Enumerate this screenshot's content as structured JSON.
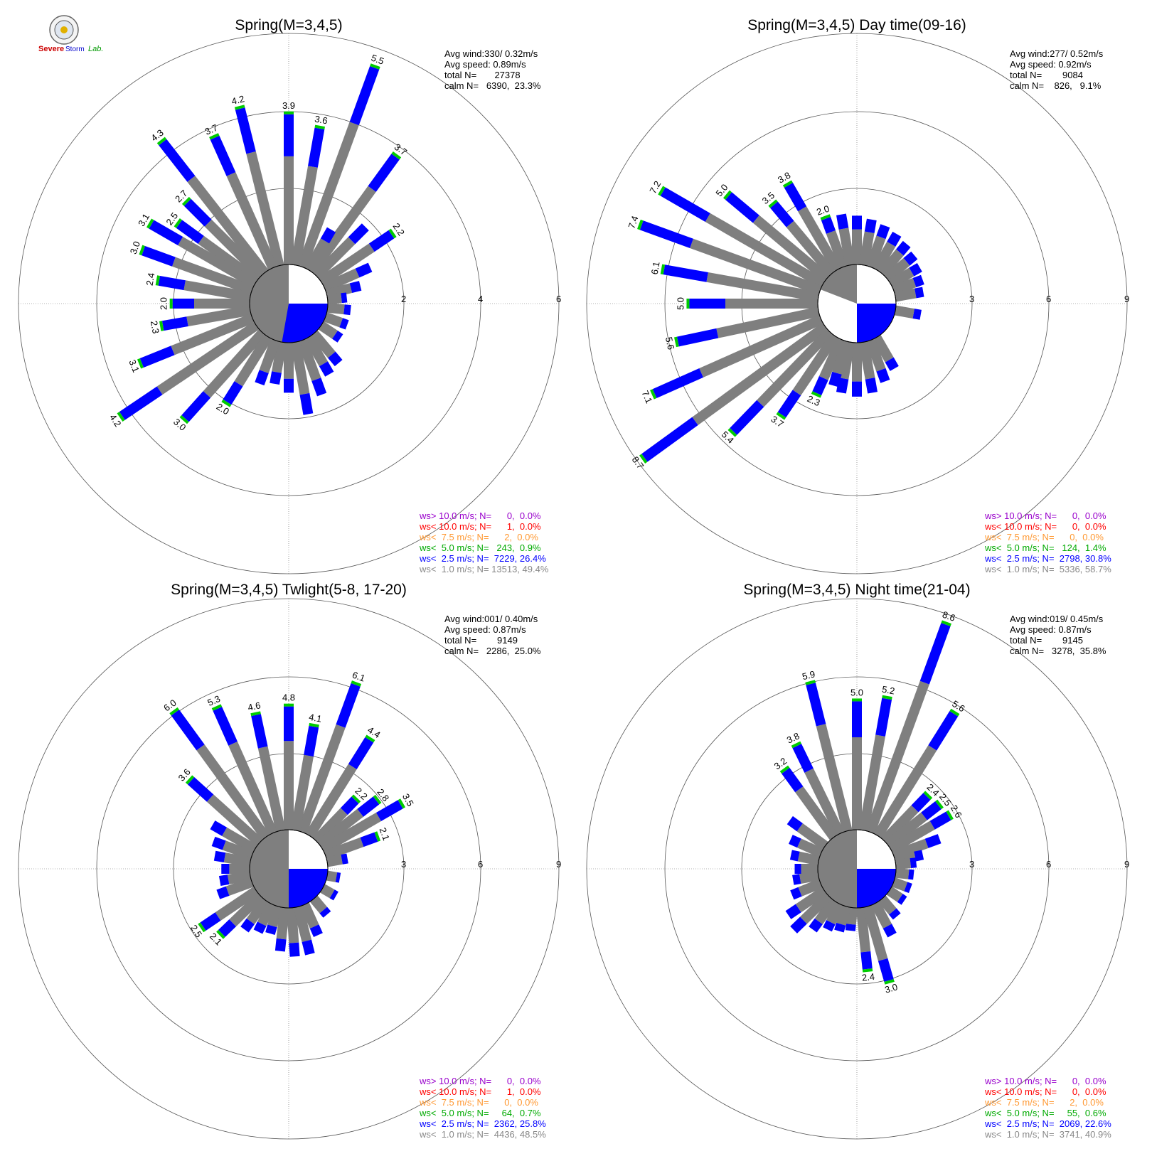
{
  "logo": {
    "lab_text_1": "Severe",
    "lab_text_2": "Storm",
    "lab_text_3": "Lab."
  },
  "colors": {
    "gray": "#7f7f7f",
    "blue": "#0000ff",
    "green": "#00cc00",
    "orange": "#ff9933",
    "red": "#ff0000",
    "purple": "#9900cc",
    "grid": "#888888"
  },
  "chart_data": [
    {
      "type": "polar-bar",
      "title": "Spring(M=3,4,5)",
      "stats": [
        "Avg wind:330/ 0.32m/s",
        "Avg speed: 0.89m/s",
        "total N=       27378",
        "calm N=   6390,  23.3%"
      ],
      "rings": [
        "2",
        "4",
        "6"
      ],
      "ring_values": [
        2,
        4,
        6
      ],
      "calm_fraction": 0.233,
      "blue_sector": [
        90,
        190
      ],
      "labeled_bars": [
        {
          "angle": 20,
          "value": 5.5,
          "label": "5.5"
        },
        {
          "angle": 36,
          "value": 3.7,
          "label": "3.7"
        },
        {
          "angle": 56,
          "value": 2.2,
          "label": "2.2"
        },
        {
          "angle": 10,
          "value": 3.6,
          "label": "3.6"
        },
        {
          "angle": 0,
          "value": 3.9,
          "label": "3.9"
        },
        {
          "angle": 346,
          "value": 4.2,
          "label": "4.2"
        },
        {
          "angle": 336,
          "value": 3.7,
          "label": "3.7"
        },
        {
          "angle": 322,
          "value": 4.3,
          "label": "4.3"
        },
        {
          "angle": 315,
          "value": 2.7,
          "label": "2.7"
        },
        {
          "angle": 306,
          "value": 2.5,
          "label": "2.5"
        },
        {
          "angle": 300,
          "value": 3.1,
          "label": "3.1"
        },
        {
          "angle": 290,
          "value": 3.0,
          "label": "3.0"
        },
        {
          "angle": 280,
          "value": 2.4,
          "label": "2.4"
        },
        {
          "angle": 270,
          "value": 2.0,
          "label": "2.0"
        },
        {
          "angle": 260,
          "value": 2.3,
          "label": "2.3"
        },
        {
          "angle": 248,
          "value": 3.1,
          "label": "3.1"
        },
        {
          "angle": 236,
          "value": 4.2,
          "label": "4.2"
        },
        {
          "angle": 222,
          "value": 3.0,
          "label": "3.0"
        },
        {
          "angle": 212,
          "value": 2.0,
          "label": "2.0"
        }
      ],
      "small_bars": [
        {
          "angle": 30,
          "value": 1.2
        },
        {
          "angle": 45,
          "value": 1.8
        },
        {
          "angle": 66,
          "value": 1.3
        },
        {
          "angle": 76,
          "value": 0.9
        },
        {
          "angle": 84,
          "value": 0.5
        },
        {
          "angle": 96,
          "value": 0.6
        },
        {
          "angle": 110,
          "value": 0.6
        },
        {
          "angle": 124,
          "value": 0.6
        },
        {
          "angle": 140,
          "value": 1.0
        },
        {
          "angle": 150,
          "value": 1.1
        },
        {
          "angle": 160,
          "value": 1.5
        },
        {
          "angle": 170,
          "value": 1.9
        },
        {
          "angle": 180,
          "value": 1.3
        },
        {
          "angle": 190,
          "value": 1.1
        },
        {
          "angle": 200,
          "value": 1.2
        }
      ],
      "legend": [
        {
          "text": "ws> 10.0 m/s; N=      0,  0.0%",
          "color": "#9900cc"
        },
        {
          "text": "ws< 10.0 m/s; N=      1,  0.0%",
          "color": "#ff0000"
        },
        {
          "text": "ws<  7.5 m/s; N=      2,  0.0%",
          "color": "#ff9933"
        },
        {
          "text": "ws<  5.0 m/s; N=   243,  0.9%",
          "color": "#00aa00"
        },
        {
          "text": "ws<  2.5 m/s; N=  7229, 26.4%",
          "color": "#0000ff"
        },
        {
          "text": "ws<  1.0 m/s; N= 13513, 49.4%",
          "color": "#888888"
        }
      ]
    },
    {
      "type": "polar-bar",
      "title": "Spring(M=3,4,5) Day time(09-16)",
      "stats": [
        "Avg wind:277/ 0.52m/s",
        "Avg speed: 0.92m/s",
        "total N=        9084",
        "calm N=    826,   9.1%"
      ],
      "rings": [
        "3",
        "6",
        "9"
      ],
      "ring_values": [
        3,
        6,
        9
      ],
      "calm_fraction": 0.091,
      "blue_sector": [
        90,
        180
      ],
      "labeled_bars": [
        {
          "angle": 330,
          "value": 3.8,
          "label": "3.8"
        },
        {
          "angle": 320,
          "value": 3.5,
          "label": "3.5"
        },
        {
          "angle": 310,
          "value": 5.0,
          "label": "5.0"
        },
        {
          "angle": 300,
          "value": 7.2,
          "label": "7.2"
        },
        {
          "angle": 290,
          "value": 7.4,
          "label": "7.4"
        },
        {
          "angle": 280,
          "value": 6.1,
          "label": "6.1"
        },
        {
          "angle": 270,
          "value": 5.0,
          "label": "5.0"
        },
        {
          "angle": 258,
          "value": 5.6,
          "label": "5.6"
        },
        {
          "angle": 246,
          "value": 7.1,
          "label": "7.1"
        },
        {
          "angle": 234,
          "value": 8.7,
          "label": "8.7"
        },
        {
          "angle": 224,
          "value": 5.4,
          "label": "5.4"
        },
        {
          "angle": 214,
          "value": 3.7,
          "label": "3.7"
        },
        {
          "angle": 204,
          "value": 2.3,
          "label": "2.3"
        },
        {
          "angle": 340,
          "value": 2.0,
          "label": "2.0"
        }
      ],
      "small_bars": [
        {
          "angle": 350,
          "value": 2.0
        },
        {
          "angle": 0,
          "value": 1.9
        },
        {
          "angle": 10,
          "value": 1.8
        },
        {
          "angle": 20,
          "value": 1.7
        },
        {
          "angle": 30,
          "value": 1.6
        },
        {
          "angle": 40,
          "value": 1.5
        },
        {
          "angle": 50,
          "value": 1.4
        },
        {
          "angle": 60,
          "value": 1.3
        },
        {
          "angle": 70,
          "value": 1.2
        },
        {
          "angle": 80,
          "value": 1.1
        },
        {
          "angle": 100,
          "value": 1.0
        },
        {
          "angle": 150,
          "value": 1.4
        },
        {
          "angle": 160,
          "value": 1.7
        },
        {
          "angle": 170,
          "value": 2.0
        },
        {
          "angle": 180,
          "value": 2.1
        },
        {
          "angle": 190,
          "value": 2.0
        },
        {
          "angle": 196,
          "value": 1.8
        }
      ],
      "legend": [
        {
          "text": "ws> 10.0 m/s; N=      0,  0.0%",
          "color": "#9900cc"
        },
        {
          "text": "ws< 10.0 m/s; N=      0,  0.0%",
          "color": "#ff0000"
        },
        {
          "text": "ws<  7.5 m/s; N=      0,  0.0%",
          "color": "#ff9933"
        },
        {
          "text": "ws<  5.0 m/s; N=   124,  1.4%",
          "color": "#00aa00"
        },
        {
          "text": "ws<  2.5 m/s; N=  2798, 30.8%",
          "color": "#0000ff"
        },
        {
          "text": "ws<  1.0 m/s; N=  5336, 58.7%",
          "color": "#888888"
        }
      ]
    },
    {
      "type": "polar-bar",
      "title": "Spring(M=3,4,5) Twlight(5-8, 17-20)",
      "stats": [
        "Avg wind:001/ 0.40m/s",
        "Avg speed: 0.87m/s",
        "total N=        9149",
        "calm N=   2286,  25.0%"
      ],
      "rings": [
        "3",
        "6",
        "9"
      ],
      "ring_values": [
        3,
        6,
        9
      ],
      "calm_fraction": 0.25,
      "blue_sector": [
        90,
        180
      ],
      "labeled_bars": [
        {
          "angle": 20,
          "value": 6.1,
          "label": "6.1"
        },
        {
          "angle": 32,
          "value": 4.4,
          "label": "4.4"
        },
        {
          "angle": 44,
          "value": 2.2,
          "label": "2.2"
        },
        {
          "angle": 52,
          "value": 2.8,
          "label": "2.8"
        },
        {
          "angle": 60,
          "value": 3.5,
          "label": "3.5"
        },
        {
          "angle": 70,
          "value": 2.1,
          "label": "2.1"
        },
        {
          "angle": 10,
          "value": 4.1,
          "label": "4.1"
        },
        {
          "angle": 0,
          "value": 4.8,
          "label": "4.8"
        },
        {
          "angle": 348,
          "value": 4.6,
          "label": "4.6"
        },
        {
          "angle": 336,
          "value": 5.3,
          "label": "5.3"
        },
        {
          "angle": 324,
          "value": 6.0,
          "label": "6.0"
        },
        {
          "angle": 312,
          "value": 3.6,
          "label": "3.6"
        },
        {
          "angle": 236,
          "value": 2.5,
          "label": "2.5"
        },
        {
          "angle": 226,
          "value": 2.1,
          "label": "2.1"
        }
      ],
      "small_bars": [
        {
          "angle": 300,
          "value": 1.9
        },
        {
          "angle": 290,
          "value": 1.6
        },
        {
          "angle": 280,
          "value": 1.4
        },
        {
          "angle": 270,
          "value": 1.1
        },
        {
          "angle": 260,
          "value": 1.2
        },
        {
          "angle": 250,
          "value": 1.4
        },
        {
          "angle": 216,
          "value": 1.4
        },
        {
          "angle": 206,
          "value": 1.2
        },
        {
          "angle": 196,
          "value": 1.1
        },
        {
          "angle": 186,
          "value": 1.7
        },
        {
          "angle": 176,
          "value": 1.9
        },
        {
          "angle": 166,
          "value": 1.9
        },
        {
          "angle": 156,
          "value": 1.3
        },
        {
          "angle": 140,
          "value": 0.8
        },
        {
          "angle": 120,
          "value": 0.6
        },
        {
          "angle": 100,
          "value": 0.5
        },
        {
          "angle": 80,
          "value": 0.8
        }
      ],
      "legend": [
        {
          "text": "ws> 10.0 m/s; N=      0,  0.0%",
          "color": "#9900cc"
        },
        {
          "text": "ws< 10.0 m/s; N=      1,  0.0%",
          "color": "#ff0000"
        },
        {
          "text": "ws<  7.5 m/s; N=      0,  0.0%",
          "color": "#ff9933"
        },
        {
          "text": "ws<  5.0 m/s; N=     64,  0.7%",
          "color": "#00aa00"
        },
        {
          "text": "ws<  2.5 m/s; N=  2362, 25.8%",
          "color": "#0000ff"
        },
        {
          "text": "ws<  1.0 m/s; N=  4436, 48.5%",
          "color": "#888888"
        }
      ]
    },
    {
      "type": "polar-bar",
      "title": "Spring(M=3,4,5) Night time(21-04)",
      "stats": [
        "Avg wind:019/ 0.45m/s",
        "Avg speed: 0.87m/s",
        "total N=        9145",
        "calm N=   3278,  35.8%"
      ],
      "rings": [
        "3",
        "6",
        "9"
      ],
      "ring_values": [
        3,
        6,
        9
      ],
      "calm_fraction": 0.358,
      "blue_sector": [
        90,
        180
      ],
      "labeled_bars": [
        {
          "angle": 20,
          "value": 8.6,
          "label": "8.6"
        },
        {
          "angle": 32,
          "value": 5.6,
          "label": "5.6"
        },
        {
          "angle": 10,
          "value": 5.2,
          "label": "5.2"
        },
        {
          "angle": 0,
          "value": 5.0,
          "label": "5.0"
        },
        {
          "angle": 346,
          "value": 5.9,
          "label": "5.9"
        },
        {
          "angle": 334,
          "value": 3.8,
          "label": "3.8"
        },
        {
          "angle": 324,
          "value": 3.2,
          "label": "3.2"
        },
        {
          "angle": 44,
          "value": 2.4,
          "label": "2.4"
        },
        {
          "angle": 52,
          "value": 2.5,
          "label": "2.5"
        },
        {
          "angle": 60,
          "value": 2.6,
          "label": "2.6"
        },
        {
          "angle": 174,
          "value": 2.4,
          "label": "2.4"
        },
        {
          "angle": 164,
          "value": 3.0,
          "label": "3.0"
        }
      ],
      "small_bars": [
        {
          "angle": 70,
          "value": 1.9
        },
        {
          "angle": 78,
          "value": 1.1
        },
        {
          "angle": 84,
          "value": 0.8
        },
        {
          "angle": 96,
          "value": 0.7
        },
        {
          "angle": 110,
          "value": 0.7
        },
        {
          "angle": 124,
          "value": 0.7
        },
        {
          "angle": 140,
          "value": 0.9
        },
        {
          "angle": 152,
          "value": 1.4
        },
        {
          "angle": 186,
          "value": 0.9
        },
        {
          "angle": 196,
          "value": 1.0
        },
        {
          "angle": 206,
          "value": 1.1
        },
        {
          "angle": 216,
          "value": 1.4
        },
        {
          "angle": 226,
          "value": 1.9
        },
        {
          "angle": 236,
          "value": 1.7
        },
        {
          "angle": 248,
          "value": 1.2
        },
        {
          "angle": 260,
          "value": 1.0
        },
        {
          "angle": 270,
          "value": 0.9
        },
        {
          "angle": 282,
          "value": 1.1
        },
        {
          "angle": 294,
          "value": 1.3
        },
        {
          "angle": 306,
          "value": 1.7
        }
      ],
      "legend": [
        {
          "text": "ws> 10.0 m/s; N=      0,  0.0%",
          "color": "#9900cc"
        },
        {
          "text": "ws< 10.0 m/s; N=      0,  0.0%",
          "color": "#ff0000"
        },
        {
          "text": "ws<  7.5 m/s; N=      2,  0.0%",
          "color": "#ff9933"
        },
        {
          "text": "ws<  5.0 m/s; N=     55,  0.6%",
          "color": "#00aa00"
        },
        {
          "text": "ws<  2.5 m/s; N=  2069, 22.6%",
          "color": "#0000ff"
        },
        {
          "text": "ws<  1.0 m/s; N=  3741, 40.9%",
          "color": "#888888"
        }
      ]
    }
  ]
}
